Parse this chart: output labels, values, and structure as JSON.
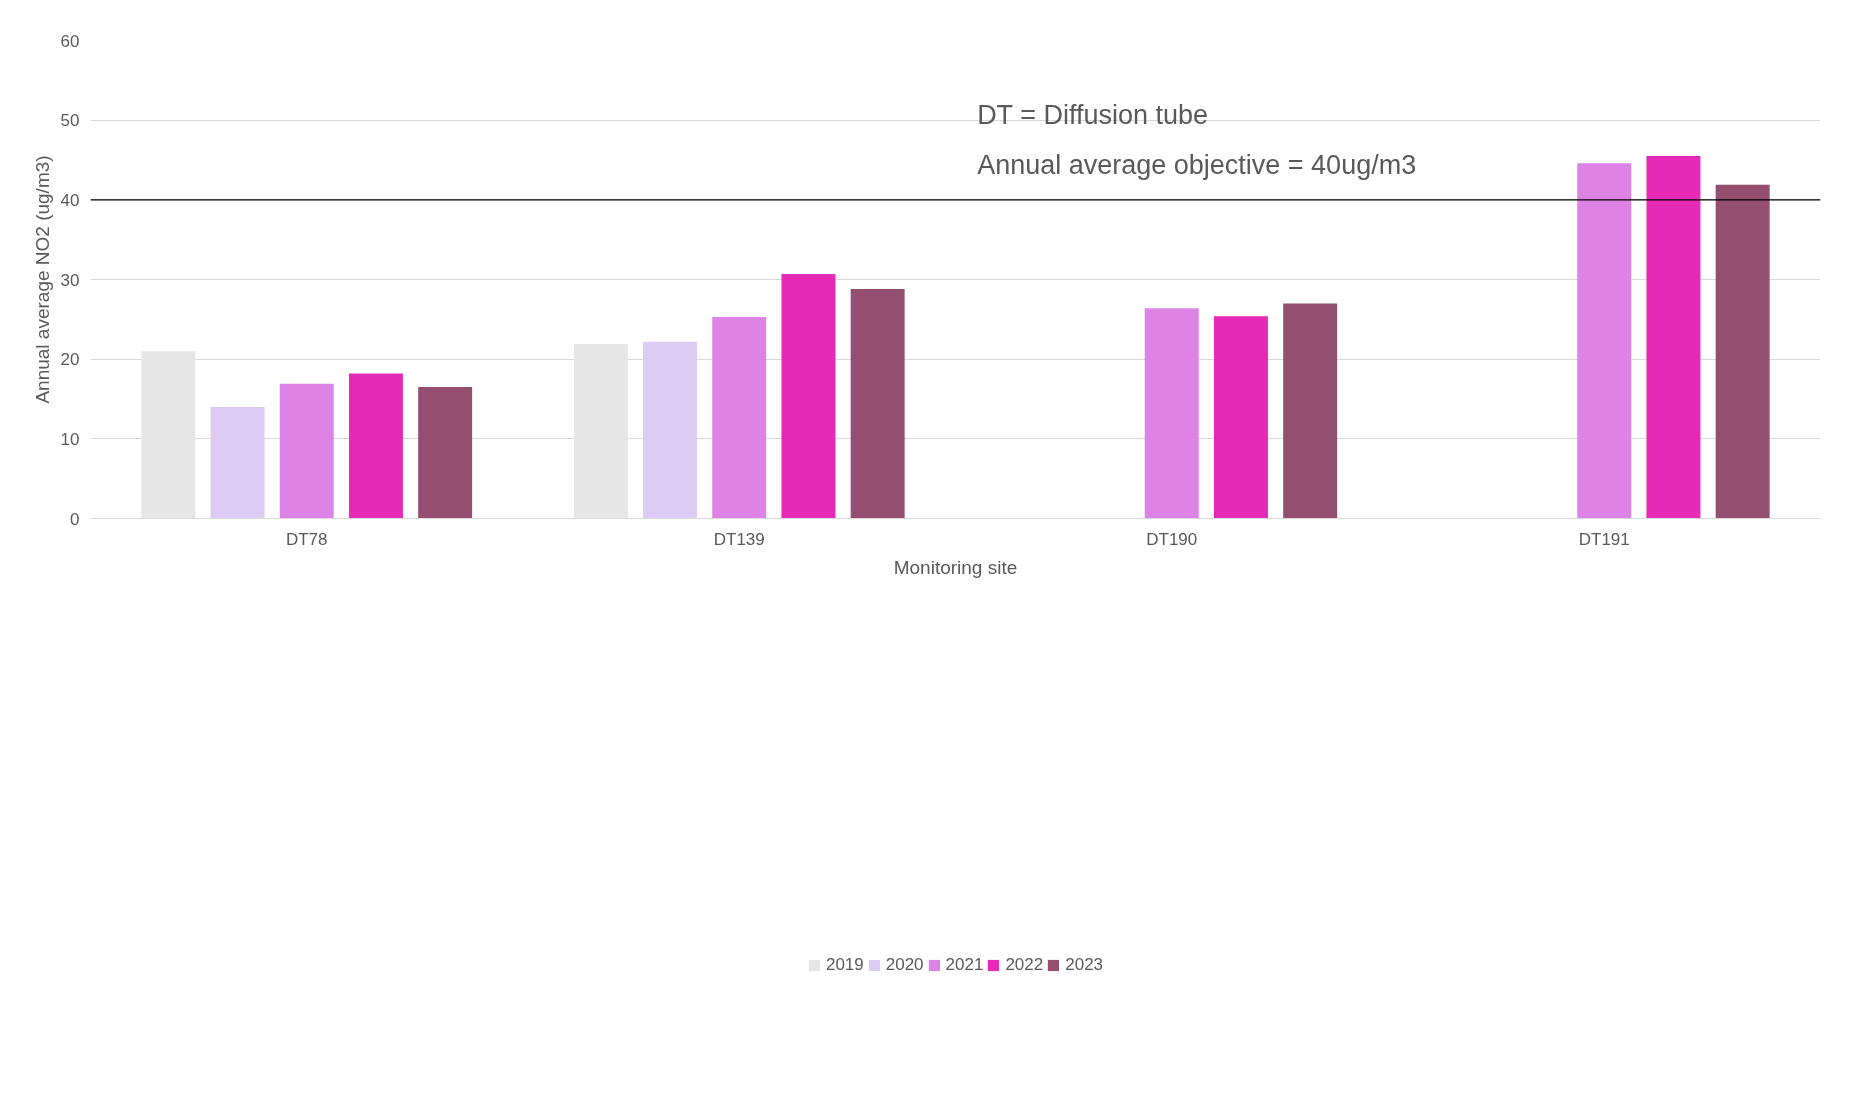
{
  "chart_data": {
    "type": "bar",
    "xlabel": "Monitoring site",
    "ylabel": "Annual average NO2 (ug/m3)",
    "categories": [
      "DT78",
      "DT139",
      "DT190",
      "DT191"
    ],
    "series": [
      {
        "name": "2019",
        "color": "#e6e6e6",
        "values": [
          21.0,
          21.9,
          null,
          null
        ]
      },
      {
        "name": "2020",
        "color": "#dccbf2",
        "values": [
          14.0,
          22.2,
          null,
          null
        ]
      },
      {
        "name": "2021",
        "color": "#de83e6",
        "values": [
          16.9,
          25.3,
          26.4,
          44.6
        ]
      },
      {
        "name": "2022",
        "color": "#e62ab7",
        "values": [
          18.2,
          30.7,
          25.4,
          45.5
        ]
      },
      {
        "name": "2023",
        "color": "#944e6f",
        "values": [
          16.5,
          28.8,
          27.0,
          41.9
        ]
      }
    ],
    "ylim": [
      0,
      60
    ],
    "yticks": [
      0,
      10,
      20,
      30,
      40,
      50,
      60
    ],
    "grid": "y",
    "legend": "bottom",
    "ref_lines": [
      {
        "axis": "y",
        "value": 40,
        "label": "Annual average objective = 40ug/m3",
        "color": "#000000"
      }
    ],
    "annotations": [
      "DT = Diffusion tube"
    ]
  }
}
